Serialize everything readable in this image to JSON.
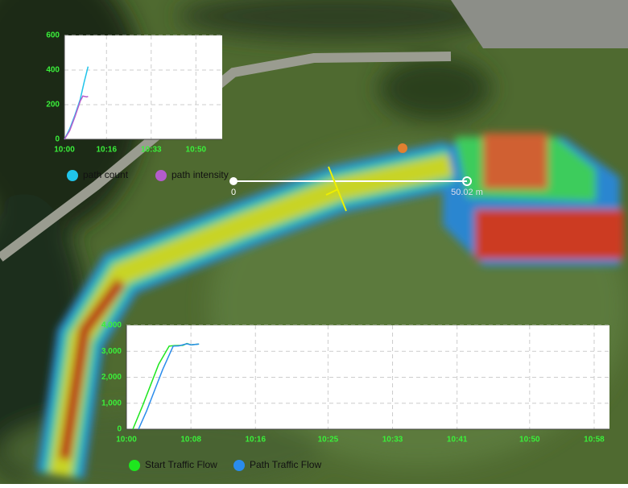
{
  "chart_data": [
    {
      "type": "line",
      "xlim": [
        0,
        60
      ],
      "xticks": [
        {
          "value": 0,
          "label": "10:00"
        },
        {
          "value": 16,
          "label": "10:16"
        },
        {
          "value": 33,
          "label": "10:33"
        },
        {
          "value": 50,
          "label": "10:50"
        }
      ],
      "ylim": [
        0,
        600
      ],
      "yticks": [
        0,
        200,
        400,
        600
      ],
      "grid": true,
      "series": [
        {
          "name": "path count",
          "color": "#20c4ea",
          "x": [
            0,
            2,
            4,
            6,
            7.5,
            9
          ],
          "values": [
            0,
            60,
            140,
            230,
            330,
            420
          ]
        },
        {
          "name": "path intensity",
          "color": "#b45ccc",
          "x": [
            0,
            2,
            4,
            6,
            7,
            8.5,
            9
          ],
          "values": [
            0,
            50,
            130,
            220,
            250,
            245,
            248
          ]
        }
      ]
    },
    {
      "type": "line",
      "xlim": [
        0,
        59.9
      ],
      "xticks": [
        {
          "value": 0,
          "label": "10:00"
        },
        {
          "value": 8,
          "label": "10:08"
        },
        {
          "value": 16,
          "label": "10:16"
        },
        {
          "value": 25,
          "label": "10:25"
        },
        {
          "value": 33,
          "label": "10:33"
        },
        {
          "value": 41,
          "label": "10:41"
        },
        {
          "value": 50,
          "label": "10:50"
        },
        {
          "value": 58,
          "label": "10:58"
        }
      ],
      "ylim": [
        0,
        4000
      ],
      "yticks": [
        0,
        {
          "value": 1000,
          "label": "1,000"
        },
        {
          "value": 2000,
          "label": "2,000"
        },
        {
          "value": 3000,
          "label": "3,000"
        },
        {
          "value": 4000,
          "label": "4,000"
        }
      ],
      "grid": true,
      "series": [
        {
          "name": "Start Traffic Flow",
          "color": "#1ee61e",
          "x": [
            0.8,
            2,
            3,
            4,
            5.3,
            6,
            7,
            7.5,
            8,
            9
          ],
          "values": [
            0,
            900,
            1700,
            2500,
            3200,
            3220,
            3230,
            3300,
            3250,
            3280
          ]
        },
        {
          "name": "Path Traffic Flow",
          "color": "#2a8cec",
          "x": [
            1.5,
            2.5,
            3.5,
            4.5,
            5.8,
            6.5,
            7.5,
            8,
            9
          ],
          "values": [
            0,
            700,
            1500,
            2300,
            3200,
            3210,
            3290,
            3250,
            3280
          ]
        }
      ]
    }
  ],
  "map": {
    "scale_start": "0",
    "scale_end": "50.02 m"
  }
}
